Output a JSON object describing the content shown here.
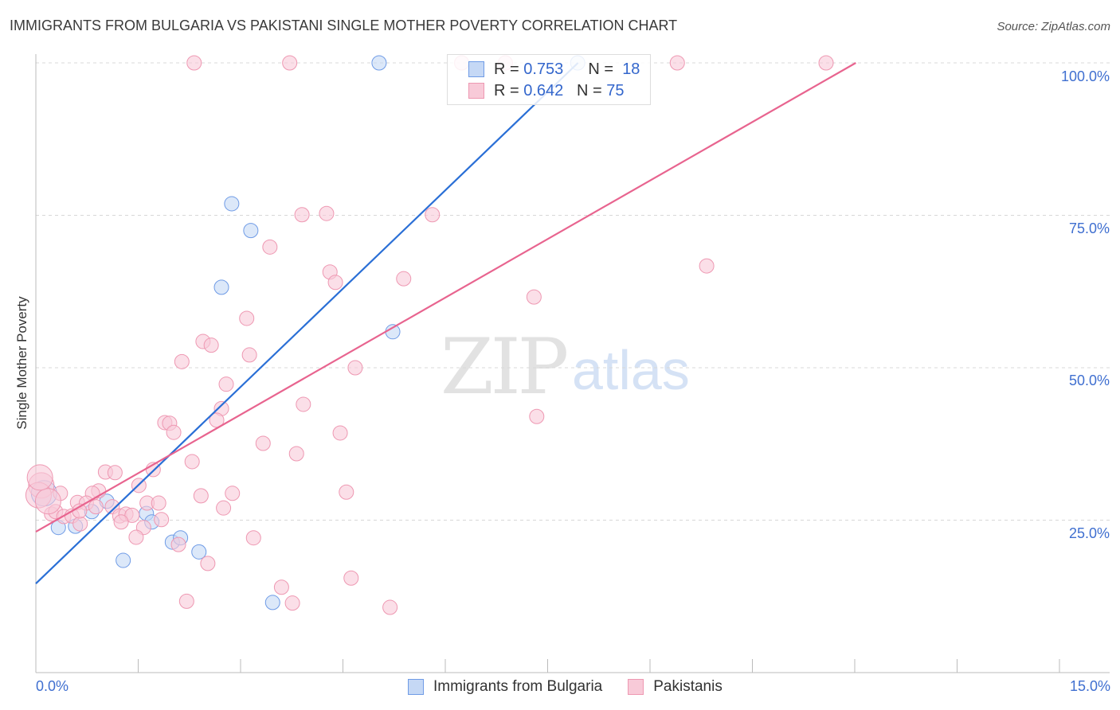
{
  "title": "IMMIGRANTS FROM BULGARIA VS PAKISTANI SINGLE MOTHER POVERTY CORRELATION CHART",
  "source": "Source: ZipAtlas.com",
  "watermark": "ZIPatlas",
  "chart_data": {
    "type": "scatter",
    "title": "IMMIGRANTS FROM BULGARIA VS PAKISTANI SINGLE MOTHER POVERTY CORRELATION CHART",
    "xlabel": "",
    "ylabel": "Single Mother Poverty",
    "xlim": [
      0,
      15
    ],
    "ylim": [
      0,
      100
    ],
    "x_tick_labels": [
      "0.0%",
      "15.0%"
    ],
    "y_ticks": [
      25,
      50,
      75,
      100
    ],
    "y_tick_labels": [
      "25.0%",
      "50.0%",
      "75.0%",
      "100.0%"
    ],
    "grid": true,
    "legend_position": "top-center",
    "series": [
      {
        "name": "Immigrants from Bulgaria",
        "color": "#6f9be6",
        "fill": "#c5d8f5",
        "line_color": "#2a6fd6",
        "R": "0.753",
        "N": "18",
        "trend": {
          "intercept": 14.6,
          "slope": 10.75
        },
        "points": [
          [
            5.03,
            100
          ],
          [
            7.94,
            100
          ],
          [
            2.87,
            76.9
          ],
          [
            3.15,
            72.5
          ],
          [
            2.72,
            63.2
          ],
          [
            5.23,
            55.9
          ],
          [
            0.12,
            29.4
          ],
          [
            0.33,
            23.8
          ],
          [
            0.58,
            24.0
          ],
          [
            0.82,
            26.4
          ],
          [
            1.04,
            28.1
          ],
          [
            1.28,
            18.4
          ],
          [
            1.62,
            26.1
          ],
          [
            1.7,
            24.7
          ],
          [
            2.0,
            21.4
          ],
          [
            2.12,
            22.1
          ],
          [
            2.39,
            19.8
          ],
          [
            3.47,
            11.5
          ]
        ]
      },
      {
        "name": "Pakistanis",
        "color": "#ee98b2",
        "fill": "#f8cad8",
        "line_color": "#e8648f",
        "R": "0.642",
        "N": "75",
        "trend": {
          "intercept": 23.1,
          "slope": 6.4
        },
        "points": [
          [
            2.32,
            100
          ],
          [
            3.72,
            100
          ],
          [
            6.24,
            100
          ],
          [
            6.88,
            100
          ],
          [
            9.4,
            100
          ],
          [
            11.58,
            100
          ],
          [
            3.9,
            75.1
          ],
          [
            4.26,
            75.3
          ],
          [
            5.81,
            75.1
          ],
          [
            3.43,
            69.8
          ],
          [
            4.31,
            65.7
          ],
          [
            4.39,
            64.0
          ],
          [
            5.39,
            64.6
          ],
          [
            7.3,
            61.6
          ],
          [
            9.83,
            66.7
          ],
          [
            3.09,
            58.1
          ],
          [
            2.45,
            54.3
          ],
          [
            2.57,
            53.7
          ],
          [
            3.13,
            52.1
          ],
          [
            2.14,
            51.0
          ],
          [
            4.68,
            50.0
          ],
          [
            2.79,
            47.3
          ],
          [
            2.72,
            43.3
          ],
          [
            3.92,
            44.0
          ],
          [
            2.65,
            41.4
          ],
          [
            1.89,
            41.0
          ],
          [
            1.96,
            40.9
          ],
          [
            2.02,
            39.4
          ],
          [
            4.46,
            39.3
          ],
          [
            7.34,
            42.0
          ],
          [
            3.33,
            37.6
          ],
          [
            3.82,
            35.9
          ],
          [
            2.29,
            34.6
          ],
          [
            1.72,
            33.3
          ],
          [
            1.02,
            32.9
          ],
          [
            1.16,
            32.8
          ],
          [
            1.51,
            30.7
          ],
          [
            0.08,
            30.7
          ],
          [
            0.04,
            29.1
          ],
          [
            0.36,
            29.4
          ],
          [
            2.88,
            29.4
          ],
          [
            4.55,
            29.6
          ],
          [
            2.42,
            29.0
          ],
          [
            0.92,
            29.8
          ],
          [
            0.83,
            29.4
          ],
          [
            0.61,
            27.9
          ],
          [
            0.74,
            27.8
          ],
          [
            1.12,
            27.2
          ],
          [
            1.63,
            27.8
          ],
          [
            1.8,
            27.8
          ],
          [
            2.75,
            27.0
          ],
          [
            0.23,
            26.0
          ],
          [
            0.29,
            26.4
          ],
          [
            0.41,
            25.6
          ],
          [
            0.53,
            25.7
          ],
          [
            0.65,
            24.4
          ],
          [
            0.88,
            27.2
          ],
          [
            1.23,
            25.7
          ],
          [
            1.32,
            26.0
          ],
          [
            1.41,
            25.8
          ],
          [
            1.25,
            24.7
          ],
          [
            1.84,
            25.1
          ],
          [
            1.58,
            23.8
          ],
          [
            1.47,
            22.2
          ],
          [
            3.19,
            22.1
          ],
          [
            2.09,
            21.0
          ],
          [
            2.52,
            17.9
          ],
          [
            3.6,
            14.0
          ],
          [
            4.62,
            15.5
          ],
          [
            2.21,
            11.7
          ],
          [
            3.76,
            11.4
          ],
          [
            5.19,
            10.7
          ],
          [
            0.18,
            28.1
          ],
          [
            0.64,
            26.5
          ],
          [
            0.06,
            32.0
          ]
        ]
      }
    ]
  },
  "legend": {
    "r_label": "R =",
    "n_label": "N =",
    "rows": [
      {
        "r": "0.753",
        "n": "18"
      },
      {
        "r": "0.642",
        "n": "75"
      }
    ]
  }
}
